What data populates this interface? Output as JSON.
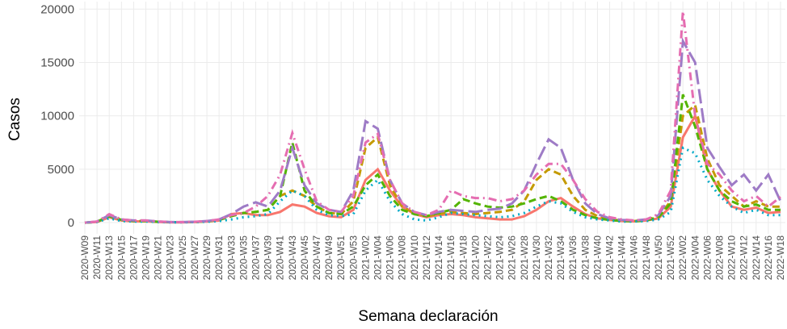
{
  "chart_data": {
    "type": "line",
    "x_label": "Semana declaración",
    "y_label": "Casos",
    "categories": [
      "2020-W09",
      "2020-W11",
      "2020-W13",
      "2020-W15",
      "2020-W17",
      "2020-W19",
      "2020-W21",
      "2020-W23",
      "2020-W25",
      "2020-W27",
      "2020-W29",
      "2020-W31",
      "2020-W33",
      "2020-W35",
      "2020-W37",
      "2020-W39",
      "2020-W41",
      "2020-W43",
      "2020-W45",
      "2020-W47",
      "2020-W49",
      "2020-W51",
      "2020-W53",
      "2021-W02",
      "2021-W04",
      "2021-W06",
      "2021-W08",
      "2021-W10",
      "2021-W12",
      "2021-W14",
      "2021-W16",
      "2021-W18",
      "2021-W20",
      "2021-W22",
      "2021-W24",
      "2021-W26",
      "2021-W28",
      "2021-W30",
      "2021-W32",
      "2021-W34",
      "2021-W36",
      "2021-W38",
      "2021-W40",
      "2021-W42",
      "2021-W44",
      "2021-W46",
      "2021-W48",
      "2021-W50",
      "2021-W52",
      "2022-W02",
      "2022-W04",
      "2022-W06",
      "2022-W08",
      "2022-W10",
      "2022-W12",
      "2022-W14",
      "2022-W16",
      "2022-W18"
    ],
    "ylim": [
      -600,
      20400
    ],
    "yticks": [
      0,
      5000,
      10000,
      15000,
      20000
    ],
    "grid": true,
    "series": [
      {
        "color": "#F8766D",
        "linetype": "solid",
        "values": [
          0,
          60,
          500,
          200,
          120,
          120,
          60,
          30,
          30,
          50,
          100,
          200,
          800,
          900,
          700,
          700,
          1000,
          1700,
          1500,
          900,
          600,
          500,
          1200,
          4000,
          5000,
          3000,
          1500,
          800,
          500,
          700,
          800,
          700,
          500,
          400,
          300,
          300,
          600,
          1200,
          2000,
          2300,
          1500,
          800,
          400,
          250,
          150,
          120,
          200,
          400,
          1500,
          8000,
          10000,
          5000,
          3000,
          1500,
          1200,
          1400,
          900,
          1000
        ]
      },
      {
        "color": "#C49A00",
        "linetype": "dashed",
        "values": [
          0,
          80,
          600,
          250,
          150,
          150,
          80,
          40,
          40,
          60,
          120,
          250,
          600,
          900,
          1000,
          1200,
          2500,
          3000,
          2500,
          1500,
          900,
          800,
          2000,
          7000,
          8000,
          3500,
          1500,
          900,
          600,
          800,
          1000,
          900,
          800,
          900,
          1000,
          1200,
          2000,
          4000,
          5000,
          4500,
          2500,
          1200,
          600,
          300,
          200,
          150,
          250,
          600,
          2000,
          10000,
          11000,
          6000,
          3500,
          2500,
          1500,
          2000,
          1500,
          1500
        ]
      },
      {
        "color": "#53B400",
        "linetype": "dashed",
        "values": [
          0,
          80,
          600,
          250,
          150,
          150,
          80,
          40,
          40,
          60,
          120,
          250,
          600,
          900,
          1000,
          1200,
          2500,
          7500,
          3000,
          1500,
          900,
          800,
          1500,
          3500,
          4500,
          2500,
          1200,
          800,
          600,
          900,
          1200,
          2200,
          1800,
          1500,
          1400,
          1500,
          1800,
          2200,
          2500,
          2000,
          1200,
          700,
          400,
          250,
          150,
          120,
          200,
          500,
          1800,
          12000,
          9000,
          5000,
          3000,
          2000,
          1500,
          1700,
          1200,
          1200
        ]
      },
      {
        "color": "#00A9C7",
        "linetype": "dotted",
        "values": [
          0,
          60,
          400,
          150,
          100,
          100,
          50,
          30,
          30,
          40,
          80,
          150,
          300,
          500,
          600,
          800,
          2000,
          3000,
          2500,
          1200,
          700,
          600,
          800,
          3000,
          4000,
          2000,
          800,
          300,
          200,
          500,
          900,
          800,
          700,
          600,
          500,
          600,
          900,
          1500,
          2000,
          1800,
          1000,
          500,
          300,
          200,
          100,
          100,
          150,
          300,
          1000,
          7000,
          6500,
          4000,
          2500,
          1500,
          900,
          1200,
          700,
          700
        ]
      },
      {
        "color": "#9E7BC6",
        "linetype": "longdash",
        "values": [
          0,
          100,
          700,
          300,
          200,
          200,
          100,
          50,
          50,
          80,
          150,
          300,
          800,
          1500,
          1900,
          1500,
          3000,
          7000,
          3500,
          1800,
          1200,
          1000,
          3000,
          9500,
          8800,
          4000,
          1800,
          1000,
          700,
          1000,
          1200,
          1100,
          1000,
          1200,
          1300,
          1800,
          3000,
          5500,
          7800,
          7000,
          4000,
          1800,
          800,
          400,
          250,
          200,
          300,
          700,
          2500,
          17000,
          15000,
          7000,
          5200,
          3500,
          4500,
          3000,
          4500,
          2000
        ]
      },
      {
        "color": "#E56DB1",
        "linetype": "dotdash",
        "values": [
          0,
          100,
          800,
          300,
          200,
          200,
          100,
          50,
          50,
          80,
          150,
          300,
          700,
          900,
          1500,
          2500,
          4500,
          8400,
          5000,
          2000,
          1200,
          1000,
          2500,
          7500,
          8300,
          4000,
          1800,
          1000,
          700,
          1200,
          3000,
          2500,
          2300,
          2300,
          2000,
          2200,
          3000,
          4500,
          5500,
          5500,
          4000,
          2200,
          1000,
          500,
          300,
          200,
          300,
          800,
          3000,
          19800,
          10000,
          5500,
          4500,
          3000,
          2000,
          2500,
          1500,
          2400
        ]
      }
    ]
  }
}
